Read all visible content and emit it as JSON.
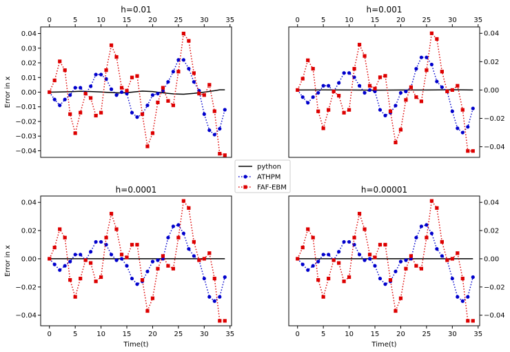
{
  "chart_data": [
    {
      "type": "line",
      "title": "h=0.01",
      "xlabel": "",
      "ylabel": "Error in x",
      "xticks": [
        0,
        5,
        10,
        15,
        20,
        25,
        30,
        35
      ],
      "yticks": [
        -0.04,
        -0.03,
        -0.02,
        -0.01,
        0.0,
        0.01,
        0.02,
        0.03,
        0.04
      ],
      "ytick_labels": [
        "−0.04",
        "−0.03",
        "−0.02",
        "−0.01",
        "0.00",
        "0.01",
        "0.02",
        "0.03",
        "0.04"
      ],
      "xticks_top": true,
      "xticks_bottom": false,
      "yaxis_side": "left",
      "xlim": [
        -1.7,
        35.3
      ],
      "ylim": [
        -0.0445,
        0.0445
      ],
      "series": [
        {
          "name": "python",
          "style": "solid",
          "color": "#000000",
          "x": [
            0,
            2,
            4,
            6,
            8,
            10,
            12,
            14,
            16,
            18,
            20,
            22,
            24,
            26,
            28,
            30,
            32,
            33,
            34
          ],
          "y": [
            0.0,
            0.0001,
            0.0003,
            0.0006,
            0.0004,
            0.0001,
            -0.0003,
            -0.0006,
            0.0,
            0.0007,
            0.0004,
            -0.0005,
            -0.0012,
            -0.0014,
            -0.0008,
            0.0,
            0.001,
            0.0016,
            0.0016
          ]
        },
        {
          "name": "ATHPM",
          "style": "dotted",
          "color": "#0000cc",
          "marker": "circle",
          "x": [
            0,
            1,
            2,
            3,
            4,
            5,
            6,
            7,
            8,
            9,
            10,
            11,
            12,
            13,
            14,
            15,
            16,
            17,
            18,
            19,
            20,
            21,
            22,
            23,
            24,
            25,
            26,
            27,
            28,
            29,
            30,
            31,
            32,
            33,
            34
          ],
          "y": [
            0.0,
            -0.005,
            -0.009,
            -0.005,
            -0.002,
            0.003,
            0.003,
            -0.001,
            0.004,
            0.012,
            0.012,
            0.009,
            0.002,
            -0.002,
            0.0,
            -0.001,
            -0.014,
            -0.017,
            -0.015,
            -0.009,
            -0.002,
            -0.001,
            0.001,
            0.007,
            0.014,
            0.022,
            0.022,
            0.016,
            0.007,
            0.001,
            -0.015,
            -0.026,
            -0.029,
            -0.025,
            -0.012
          ]
        },
        {
          "name": "FAF-EBM",
          "style": "dotted",
          "color": "#dd0000",
          "marker": "square",
          "x": [
            0,
            1,
            2,
            3,
            4,
            5,
            6,
            7,
            8,
            9,
            10,
            11,
            12,
            13,
            14,
            15,
            16,
            17,
            18,
            19,
            20,
            21,
            22,
            23,
            24,
            25,
            26,
            27,
            28,
            29,
            30,
            31,
            32,
            33,
            34
          ],
          "y": [
            0.0,
            0.008,
            0.021,
            0.015,
            -0.015,
            -0.028,
            -0.014,
            -0.001,
            -0.004,
            -0.016,
            -0.014,
            0.015,
            0.032,
            0.024,
            0.003,
            0.001,
            0.01,
            0.011,
            -0.015,
            -0.037,
            -0.028,
            -0.007,
            0.003,
            -0.006,
            -0.009,
            0.014,
            0.04,
            0.035,
            0.013,
            -0.001,
            -0.002,
            0.005,
            -0.013,
            -0.042,
            -0.043
          ]
        }
      ]
    },
    {
      "type": "line",
      "title": "h=0.001",
      "xlabel": "",
      "ylabel": "",
      "xticks": [
        0,
        5,
        10,
        15,
        20,
        25,
        30,
        35
      ],
      "yticks": [
        -0.04,
        -0.02,
        0.0,
        0.02,
        0.04
      ],
      "ytick_labels": [
        "−0.04",
        "−0.02",
        "0.00",
        "0.02",
        "0.04"
      ],
      "xticks_top": true,
      "xticks_bottom": false,
      "yaxis_side": "right",
      "xlim": [
        -1.7,
        35.3
      ],
      "ylim": [
        -0.0475,
        0.0445
      ],
      "series": [
        {
          "name": "python",
          "style": "solid",
          "color": "#000000",
          "x": [
            0,
            5,
            10,
            15,
            20,
            25,
            30,
            34
          ],
          "y": [
            0.0,
            0.0001,
            0.0,
            -0.0001,
            0.0,
            0.0,
            0.0002,
            0.0
          ]
        },
        {
          "name": "ATHPM",
          "style": "dotted",
          "color": "#0000cc",
          "marker": "circle",
          "x": [
            0,
            1,
            2,
            3,
            4,
            5,
            6,
            7,
            8,
            9,
            10,
            11,
            12,
            13,
            14,
            15,
            16,
            17,
            18,
            19,
            20,
            21,
            22,
            23,
            24,
            25,
            26,
            27,
            28,
            29,
            30,
            31,
            32,
            33,
            34
          ],
          "y": [
            0.0,
            -0.005,
            -0.009,
            -0.005,
            -0.002,
            0.003,
            0.003,
            -0.001,
            0.005,
            0.012,
            0.012,
            0.009,
            0.003,
            -0.002,
            0.0,
            -0.001,
            -0.014,
            -0.018,
            -0.016,
            -0.011,
            -0.002,
            -0.001,
            0.002,
            0.015,
            0.023,
            0.023,
            0.018,
            0.006,
            0.002,
            -0.001,
            -0.015,
            -0.027,
            -0.03,
            -0.026,
            -0.013
          ]
        },
        {
          "name": "FAF-EBM",
          "style": "dotted",
          "color": "#dd0000",
          "marker": "square",
          "x": [
            0,
            1,
            2,
            3,
            4,
            5,
            6,
            7,
            8,
            9,
            10,
            11,
            12,
            13,
            14,
            15,
            16,
            17,
            18,
            19,
            20,
            21,
            22,
            23,
            24,
            25,
            26,
            27,
            28,
            29,
            30,
            31,
            32,
            33,
            34
          ],
          "y": [
            0.0,
            0.008,
            0.021,
            0.015,
            -0.015,
            -0.027,
            -0.014,
            -0.001,
            -0.004,
            -0.016,
            -0.014,
            0.015,
            0.032,
            0.024,
            0.003,
            0.001,
            0.009,
            0.01,
            -0.015,
            -0.037,
            -0.028,
            -0.007,
            0.002,
            -0.005,
            -0.008,
            0.014,
            0.04,
            0.036,
            0.013,
            -0.001,
            0.0,
            0.003,
            -0.014,
            -0.043,
            -0.043
          ]
        }
      ]
    },
    {
      "type": "line",
      "title": "h=0.0001",
      "xlabel": "Time(t)",
      "ylabel": "Error in x",
      "xticks": [
        0,
        5,
        10,
        15,
        20,
        25,
        30,
        35
      ],
      "yticks": [
        -0.04,
        -0.02,
        0.0,
        0.02,
        0.04
      ],
      "ytick_labels": [
        "−0.04",
        "−0.02",
        "0.00",
        "0.02",
        "0.04"
      ],
      "xticks_top": false,
      "xticks_bottom": true,
      "yaxis_side": "left",
      "xlim": [
        -1.7,
        35.3
      ],
      "ylim": [
        -0.0475,
        0.0445
      ],
      "series": [
        {
          "name": "python",
          "style": "solid",
          "color": "#000000",
          "x": [
            0,
            34
          ],
          "y": [
            0.0,
            0.0
          ]
        },
        {
          "name": "ATHPM",
          "style": "dotted",
          "color": "#0000cc",
          "marker": "circle",
          "x": [
            0,
            1,
            2,
            3,
            4,
            5,
            6,
            7,
            8,
            9,
            10,
            11,
            12,
            13,
            14,
            15,
            16,
            17,
            18,
            19,
            20,
            21,
            22,
            23,
            24,
            25,
            26,
            27,
            28,
            29,
            30,
            31,
            32,
            33,
            34
          ],
          "y": [
            0.0,
            -0.004,
            -0.008,
            -0.005,
            -0.002,
            0.003,
            0.003,
            -0.001,
            0.005,
            0.012,
            0.012,
            0.01,
            0.003,
            -0.001,
            0.0,
            -0.005,
            -0.014,
            -0.018,
            -0.016,
            -0.009,
            -0.002,
            -0.001,
            0.0,
            0.015,
            0.023,
            0.024,
            0.018,
            0.007,
            0.002,
            -0.001,
            -0.014,
            -0.027,
            -0.03,
            -0.027,
            -0.013
          ]
        },
        {
          "name": "FAF-EBM",
          "style": "dotted",
          "color": "#dd0000",
          "marker": "square",
          "x": [
            0,
            1,
            2,
            3,
            4,
            5,
            6,
            7,
            8,
            9,
            10,
            11,
            12,
            13,
            14,
            15,
            16,
            17,
            18,
            19,
            20,
            21,
            22,
            23,
            24,
            25,
            26,
            27,
            28,
            29,
            30,
            31,
            32,
            33,
            34
          ],
          "y": [
            0.0,
            0.008,
            0.021,
            0.015,
            -0.015,
            -0.027,
            -0.014,
            -0.001,
            -0.003,
            -0.016,
            -0.013,
            0.015,
            0.032,
            0.021,
            0.003,
            0.001,
            0.01,
            0.01,
            -0.015,
            -0.037,
            -0.028,
            -0.007,
            0.002,
            -0.005,
            -0.007,
            0.015,
            0.041,
            0.036,
            0.012,
            -0.001,
            0.0,
            0.004,
            -0.014,
            -0.044,
            -0.044
          ]
        }
      ]
    },
    {
      "type": "line",
      "title": "h=0.00001",
      "xlabel": "Time(t)",
      "ylabel": "",
      "xticks": [
        0,
        5,
        10,
        15,
        20,
        25,
        30,
        35
      ],
      "yticks": [
        -0.04,
        -0.02,
        0.0,
        0.02,
        0.04
      ],
      "ytick_labels": [
        "−0.04",
        "−0.02",
        "0.00",
        "0.02",
        "0.04"
      ],
      "xticks_top": false,
      "xticks_bottom": true,
      "yaxis_side": "right",
      "xlim": [
        -1.7,
        35.3
      ],
      "ylim": [
        -0.0475,
        0.0445
      ],
      "series": [
        {
          "name": "python",
          "style": "solid",
          "color": "#000000",
          "x": [
            0,
            34
          ],
          "y": [
            0.0,
            0.0
          ]
        },
        {
          "name": "ATHPM",
          "style": "dotted",
          "color": "#0000cc",
          "marker": "circle",
          "x": [
            0,
            1,
            2,
            3,
            4,
            5,
            6,
            7,
            8,
            9,
            10,
            11,
            12,
            13,
            14,
            15,
            16,
            17,
            18,
            19,
            20,
            21,
            22,
            23,
            24,
            25,
            26,
            27,
            28,
            29,
            30,
            31,
            32,
            33,
            34
          ],
          "y": [
            0.0,
            -0.004,
            -0.008,
            -0.005,
            -0.002,
            0.003,
            0.003,
            -0.001,
            0.005,
            0.012,
            0.012,
            0.01,
            0.003,
            -0.001,
            0.0,
            -0.005,
            -0.014,
            -0.018,
            -0.016,
            -0.009,
            -0.002,
            -0.001,
            0.0,
            0.015,
            0.023,
            0.024,
            0.018,
            0.007,
            0.002,
            -0.001,
            -0.014,
            -0.027,
            -0.03,
            -0.027,
            -0.013
          ]
        },
        {
          "name": "FAF-EBM",
          "style": "dotted",
          "color": "#dd0000",
          "marker": "square",
          "x": [
            0,
            1,
            2,
            3,
            4,
            5,
            6,
            7,
            8,
            9,
            10,
            11,
            12,
            13,
            14,
            15,
            16,
            17,
            18,
            19,
            20,
            21,
            22,
            23,
            24,
            25,
            26,
            27,
            28,
            29,
            30,
            31,
            32,
            33,
            34
          ],
          "y": [
            0.0,
            0.008,
            0.021,
            0.015,
            -0.015,
            -0.027,
            -0.014,
            -0.001,
            -0.003,
            -0.016,
            -0.013,
            0.015,
            0.032,
            0.021,
            0.003,
            0.001,
            0.01,
            0.01,
            -0.015,
            -0.037,
            -0.028,
            -0.007,
            0.002,
            -0.005,
            -0.007,
            0.015,
            0.041,
            0.036,
            0.012,
            -0.001,
            0.0,
            0.004,
            -0.014,
            -0.044,
            -0.044
          ]
        }
      ]
    }
  ],
  "legend": {
    "position": "center",
    "entries": [
      {
        "label": "python",
        "color": "#000000",
        "style": "solid"
      },
      {
        "label": "ATHPM",
        "color": "#0000cc",
        "style": "dotted",
        "marker": "circle"
      },
      {
        "label": "FAF-EBM",
        "color": "#dd0000",
        "style": "dotted",
        "marker": "square"
      }
    ]
  }
}
